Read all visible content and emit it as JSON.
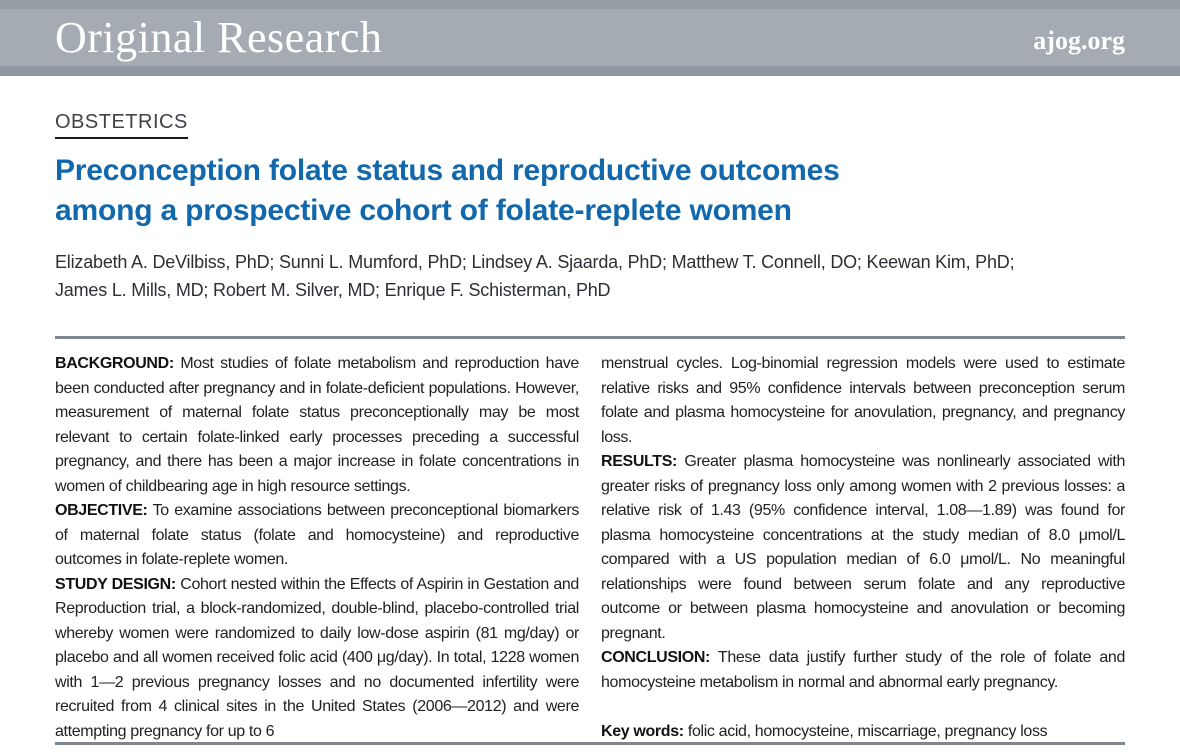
{
  "banner": {
    "journal_section": "Original Research",
    "site": "ajog.org",
    "bg_color": "#a4abb3",
    "strip_color": "#8f97a0"
  },
  "article": {
    "specialty": "OBSTETRICS",
    "title_line1": "Preconception folate status and reproductive outcomes",
    "title_line2": "among a prospective cohort of folate-replete women",
    "title_color": "#1268ac",
    "authors_line1": "Elizabeth A. DeVilbiss, PhD; Sunni L. Mumford, PhD; Lindsey A. Sjaarda, PhD; Matthew T. Connell, DO; Keewan Kim, PhD;",
    "authors_line2": "James L. Mills, MD; Robert M. Silver, MD; Enrique F. Schisterman, PhD"
  },
  "abstract": {
    "left_column": [
      {
        "label": "BACKGROUND:",
        "text": "Most studies of folate metabolism and reproduction have been conducted after pregnancy and in folate-deficient populations. However, measurement of maternal folate status preconceptionally may be most relevant to certain folate-linked early processes preceding a successful pregnancy, and there has been a major increase in folate concentrations in women of childbearing age in high resource settings."
      },
      {
        "label": "OBJECTIVE:",
        "text": "To examine associations between preconceptional biomarkers of maternal folate status (folate and homocysteine) and reproductive outcomes in folate-replete women."
      },
      {
        "label": "STUDY DESIGN:",
        "text": "Cohort nested within the Effects of Aspirin in Gestation and Reproduction trial, a block-randomized, double-blind, placebo-controlled trial whereby women were randomized to daily low-dose aspirin (81 mg/day) or placebo and all women received folic acid (400 μg/day). In total, 1228 women with 1—2 previous pregnancy losses and no documented infertility were recruited from 4 clinical sites in the United States (2006—2012) and were attempting pregnancy for up to 6"
      }
    ],
    "right_column_continuation": "menstrual cycles. Log-binomial regression models were used to estimate relative risks and 95% confidence intervals between preconception serum folate and plasma homocysteine for anovulation, pregnancy, and pregnancy loss.",
    "right_column": [
      {
        "label": "RESULTS:",
        "text": "Greater plasma homocysteine was nonlinearly associated with greater risks of pregnancy loss only among women with 2 previous losses: a relative risk of 1.43 (95% confidence interval, 1.08—1.89) was found for plasma homocysteine concentrations at the study median of 8.0 μmol/L compared with a US population median of 6.0 μmol/L. No meaningful relationships were found between serum folate and any reproductive outcome or between plasma homocysteine and anovulation or becoming pregnant."
      },
      {
        "label": "CONCLUSION:",
        "text": "These data justify further study of the role of folate and homocysteine metabolism in normal and abnormal early pregnancy."
      }
    ],
    "keywords_label": "Key words:",
    "keywords": "folic acid, homocysteine, miscarriage, pregnancy loss"
  }
}
